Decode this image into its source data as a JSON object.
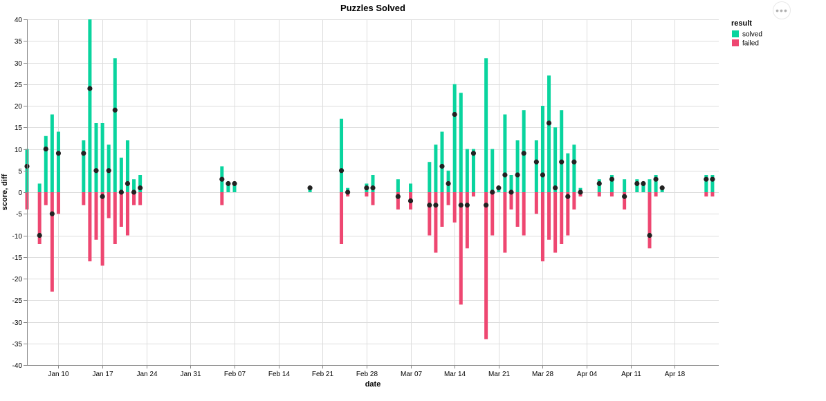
{
  "chart_data": {
    "type": "bar",
    "title": "Puzzles Solved",
    "xlabel": "date",
    "ylabel": "score, diff",
    "ylim": [
      -40,
      40
    ],
    "yticks": [
      40,
      35,
      30,
      25,
      20,
      15,
      10,
      5,
      0,
      -5,
      -10,
      -15,
      -20,
      -25,
      -30,
      -35,
      -40
    ],
    "xlim": [
      "2022-01-05",
      "2022-04-25"
    ],
    "xticks": [
      {
        "date": "2022-01-10",
        "label": "Jan 10"
      },
      {
        "date": "2022-01-17",
        "label": "Jan 17"
      },
      {
        "date": "2022-01-24",
        "label": "Jan 24"
      },
      {
        "date": "2022-01-31",
        "label": "Jan 31"
      },
      {
        "date": "2022-02-07",
        "label": "Feb 07"
      },
      {
        "date": "2022-02-14",
        "label": "Feb 14"
      },
      {
        "date": "2022-02-21",
        "label": "Feb 21"
      },
      {
        "date": "2022-02-28",
        "label": "Feb 28"
      },
      {
        "date": "2022-03-07",
        "label": "Mar 07"
      },
      {
        "date": "2022-03-14",
        "label": "Mar 14"
      },
      {
        "date": "2022-03-21",
        "label": "Mar 21"
      },
      {
        "date": "2022-03-28",
        "label": "Mar 28"
      },
      {
        "date": "2022-04-04",
        "label": "Apr 04"
      },
      {
        "date": "2022-04-11",
        "label": "Apr 11"
      },
      {
        "date": "2022-04-18",
        "label": "Apr 18"
      }
    ],
    "grid": true,
    "legend": {
      "title": "result",
      "placement": "top-right",
      "items": [
        {
          "label": "solved",
          "color": "#09d49e"
        },
        {
          "label": "failed",
          "color": "#ee4771"
        }
      ]
    },
    "diff_point_color": "#222222",
    "dates": [
      "2022-01-05",
      "2022-01-07",
      "2022-01-08",
      "2022-01-09",
      "2022-01-10",
      "2022-01-14",
      "2022-01-15",
      "2022-01-16",
      "2022-01-17",
      "2022-01-18",
      "2022-01-19",
      "2022-01-20",
      "2022-01-21",
      "2022-01-22",
      "2022-01-23",
      "2022-02-05",
      "2022-02-06",
      "2022-02-07",
      "2022-02-19",
      "2022-02-24",
      "2022-02-25",
      "2022-02-28",
      "2022-03-01",
      "2022-03-05",
      "2022-03-07",
      "2022-03-10",
      "2022-03-11",
      "2022-03-12",
      "2022-03-13",
      "2022-03-14",
      "2022-03-15",
      "2022-03-16",
      "2022-03-17",
      "2022-03-19",
      "2022-03-20",
      "2022-03-21",
      "2022-03-22",
      "2022-03-23",
      "2022-03-24",
      "2022-03-25",
      "2022-03-27",
      "2022-03-28",
      "2022-03-29",
      "2022-03-30",
      "2022-03-31",
      "2022-04-01",
      "2022-04-02",
      "2022-04-03",
      "2022-04-06",
      "2022-04-08",
      "2022-04-10",
      "2022-04-12",
      "2022-04-13",
      "2022-04-14",
      "2022-04-15",
      "2022-04-16",
      "2022-04-23",
      "2022-04-24"
    ],
    "series": [
      {
        "name": "solved",
        "values": [
          10,
          2,
          13,
          18,
          14,
          12,
          40,
          16,
          16,
          11,
          31,
          8,
          12,
          3,
          4,
          6,
          2,
          2,
          1,
          17,
          1,
          2,
          4,
          3,
          2,
          7,
          11,
          14,
          5,
          25,
          23,
          10,
          10,
          31,
          10,
          1,
          18,
          4,
          12,
          19,
          12,
          20,
          27,
          15,
          19,
          9,
          11,
          1,
          3,
          4,
          3,
          3,
          2,
          3,
          4,
          1,
          4,
          4
        ]
      },
      {
        "name": "failed",
        "values": [
          -4,
          -12,
          -3,
          -23,
          -5,
          -3,
          -16,
          -11,
          -17,
          -6,
          -12,
          -8,
          -10,
          -3,
          -3,
          -3,
          0,
          0,
          0,
          -12,
          -1,
          -1,
          -3,
          -4,
          -4,
          -10,
          -14,
          -8,
          -3,
          -7,
          -26,
          -13,
          -1,
          -34,
          -10,
          0,
          -14,
          -4,
          -8,
          -10,
          -5,
          -16,
          -11,
          -14,
          -12,
          -10,
          -4,
          -1,
          -1,
          -1,
          -4,
          0,
          0,
          -13,
          -1,
          0,
          -1,
          -1
        ]
      },
      {
        "name": "diff",
        "values": [
          6,
          -10,
          10,
          -5,
          9,
          9,
          24,
          5,
          -1,
          5,
          19,
          0,
          2,
          0,
          1,
          3,
          2,
          2,
          1,
          5,
          0,
          1,
          1,
          -1,
          -2,
          -3,
          -3,
          6,
          2,
          18,
          -3,
          -3,
          9,
          -3,
          0,
          1,
          4,
          0,
          4,
          9,
          7,
          4,
          16,
          1,
          7,
          -1,
          7,
          0,
          2,
          3,
          -1,
          2,
          2,
          -10,
          3,
          1,
          3,
          3
        ]
      }
    ]
  }
}
